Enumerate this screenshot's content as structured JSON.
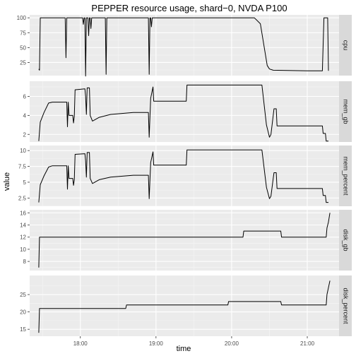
{
  "chart_data": {
    "type": "line",
    "title": "PEPPER resource usage, shard−0, NVDA P100",
    "xlabel": "time",
    "ylabel": "value",
    "x_ticks": [
      "18:00",
      "19:00",
      "20:00",
      "21:00"
    ],
    "x_tick_hours": [
      18,
      19,
      20,
      21
    ],
    "x_range_hours": [
      17.33,
      21.42
    ],
    "grid": true,
    "facet_scales": "free_y",
    "panels": [
      {
        "label": "cpu",
        "ylim": [
          3,
          105
        ],
        "y_ticks": [
          25,
          50,
          75,
          100
        ],
        "points": [
          [
            17.45,
            14
          ],
          [
            17.46,
            12
          ],
          [
            17.47,
            100
          ],
          [
            17.8,
            100
          ],
          [
            17.81,
            33
          ],
          [
            17.82,
            100
          ],
          [
            18.03,
            100
          ],
          [
            18.04,
            89
          ],
          [
            18.05,
            100
          ],
          [
            18.06,
            100
          ],
          [
            18.07,
            2
          ],
          [
            18.08,
            100
          ],
          [
            18.1,
            100
          ],
          [
            18.11,
            70
          ],
          [
            18.12,
            100
          ],
          [
            18.13,
            100
          ],
          [
            18.14,
            82
          ],
          [
            18.15,
            100
          ],
          [
            18.33,
            100
          ],
          [
            18.34,
            5
          ],
          [
            18.35,
            100
          ],
          [
            18.9,
            100
          ],
          [
            18.91,
            5
          ],
          [
            18.92,
            100
          ],
          [
            18.93,
            100
          ],
          [
            18.94,
            85
          ],
          [
            18.95,
            100
          ],
          [
            20.3,
            100
          ],
          [
            20.38,
            90
          ],
          [
            20.47,
            20
          ],
          [
            20.5,
            14
          ],
          [
            20.55,
            12
          ],
          [
            21.0,
            11
          ],
          [
            21.2,
            11
          ],
          [
            21.22,
            100
          ],
          [
            21.27,
            100
          ],
          [
            21.28,
            11
          ]
        ]
      },
      {
        "label": "mem_gb",
        "ylim": [
          1.2,
          7.6
        ],
        "y_ticks": [
          2,
          4,
          6
        ],
        "points": [
          [
            17.45,
            1.3
          ],
          [
            17.47,
            3.3
          ],
          [
            17.52,
            4.3
          ],
          [
            17.58,
            5.3
          ],
          [
            17.63,
            5.4
          ],
          [
            17.82,
            5.4
          ],
          [
            17.83,
            2.8
          ],
          [
            17.84,
            5.4
          ],
          [
            17.85,
            4.0
          ],
          [
            17.9,
            4.0
          ],
          [
            17.91,
            3.2
          ],
          [
            17.92,
            3.9
          ],
          [
            17.93,
            6.7
          ],
          [
            18.06,
            6.8
          ],
          [
            18.07,
            6.0
          ],
          [
            18.08,
            4.1
          ],
          [
            18.09,
            6.9
          ],
          [
            18.12,
            6.9
          ],
          [
            18.13,
            4.0
          ],
          [
            18.16,
            3.4
          ],
          [
            18.25,
            3.8
          ],
          [
            18.4,
            4.1
          ],
          [
            18.7,
            4.3
          ],
          [
            18.9,
            4.3
          ],
          [
            18.91,
            1.7
          ],
          [
            18.93,
            5.8
          ],
          [
            18.96,
            7.0
          ],
          [
            18.97,
            5.5
          ],
          [
            19.4,
            5.5
          ],
          [
            19.41,
            7.2
          ],
          [
            20.3,
            7.2
          ],
          [
            20.4,
            7.2
          ],
          [
            20.46,
            3.0
          ],
          [
            20.5,
            1.7
          ],
          [
            20.52,
            2.0
          ],
          [
            20.55,
            4.0
          ],
          [
            20.56,
            4.7
          ],
          [
            20.59,
            4.7
          ],
          [
            20.6,
            2.9
          ],
          [
            21.2,
            2.9
          ],
          [
            21.21,
            2.1
          ],
          [
            21.24,
            2.1
          ],
          [
            21.25,
            1.3
          ],
          [
            21.28,
            1.3
          ]
        ]
      },
      {
        "label": "mem_percent",
        "ylim": [
          1.2,
          10.8
        ],
        "y_ticks": [
          2.5,
          5.0,
          7.5,
          10.0
        ],
        "points": [
          [
            17.45,
            1.8
          ],
          [
            17.47,
            4.6
          ],
          [
            17.52,
            6.0
          ],
          [
            17.58,
            7.4
          ],
          [
            17.63,
            7.6
          ],
          [
            17.82,
            7.6
          ],
          [
            17.83,
            3.9
          ],
          [
            17.84,
            7.6
          ],
          [
            17.85,
            5.6
          ],
          [
            17.9,
            5.6
          ],
          [
            17.91,
            4.5
          ],
          [
            17.92,
            5.4
          ],
          [
            17.93,
            9.4
          ],
          [
            18.06,
            9.5
          ],
          [
            18.07,
            8.4
          ],
          [
            18.08,
            5.8
          ],
          [
            18.09,
            9.7
          ],
          [
            18.12,
            9.7
          ],
          [
            18.13,
            5.6
          ],
          [
            18.16,
            4.8
          ],
          [
            18.25,
            5.4
          ],
          [
            18.4,
            5.8
          ],
          [
            18.7,
            6.1
          ],
          [
            18.9,
            6.1
          ],
          [
            18.91,
            2.4
          ],
          [
            18.93,
            8.1
          ],
          [
            18.96,
            9.8
          ],
          [
            18.97,
            7.7
          ],
          [
            19.4,
            7.7
          ],
          [
            19.41,
            10.1
          ],
          [
            20.3,
            10.1
          ],
          [
            20.4,
            10.1
          ],
          [
            20.46,
            4.2
          ],
          [
            20.5,
            2.4
          ],
          [
            20.52,
            2.8
          ],
          [
            20.55,
            5.6
          ],
          [
            20.56,
            6.5
          ],
          [
            20.59,
            6.5
          ],
          [
            20.6,
            4.0
          ],
          [
            21.2,
            4.0
          ],
          [
            21.21,
            2.9
          ],
          [
            21.24,
            2.9
          ],
          [
            21.25,
            1.8
          ],
          [
            21.28,
            1.8
          ]
        ]
      },
      {
        "label": "disk_gb",
        "ylim": [
          6.5,
          16.5
        ],
        "y_ticks": [
          8,
          10,
          12,
          14,
          16
        ],
        "points": [
          [
            17.45,
            7
          ],
          [
            17.46,
            12
          ],
          [
            20.15,
            12
          ],
          [
            20.16,
            13
          ],
          [
            20.65,
            13
          ],
          [
            20.66,
            12
          ],
          [
            21.25,
            12
          ],
          [
            21.26,
            13.5
          ],
          [
            21.28,
            14.5
          ],
          [
            21.3,
            16
          ]
        ]
      },
      {
        "label": "disk_percent",
        "ylim": [
          13,
          30.5
        ],
        "y_ticks": [
          15,
          20,
          25
        ],
        "points": [
          [
            17.45,
            14
          ],
          [
            17.46,
            21
          ],
          [
            18.6,
            21
          ],
          [
            18.61,
            22
          ],
          [
            19.95,
            22
          ],
          [
            19.96,
            23
          ],
          [
            20.65,
            23
          ],
          [
            20.66,
            22
          ],
          [
            21.25,
            22
          ],
          [
            21.26,
            25
          ],
          [
            21.28,
            27
          ],
          [
            21.3,
            29
          ]
        ]
      }
    ]
  }
}
